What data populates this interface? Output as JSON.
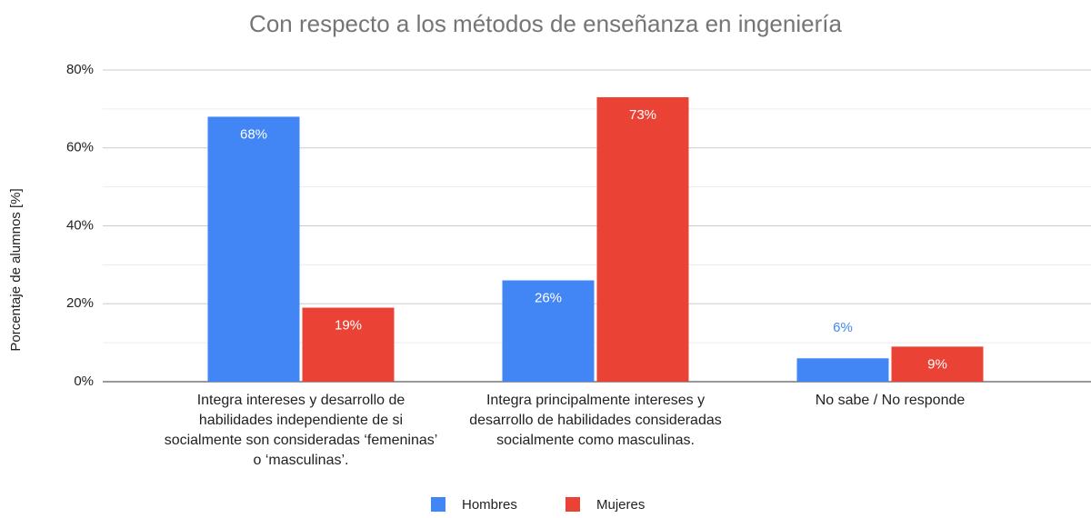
{
  "chart_data": {
    "type": "bar",
    "title": "Con respecto a los métodos de enseñanza en ingeniería",
    "y_label": "Porcentaje de alumnos [%]",
    "categories": [
      "Integra intereses y desarrollo de habilidades independiente de si socialmente son consideradas ‘femeninas’ o ‘masculinas’.",
      "Integra principalmente intereses y desarrollo de habilidades consideradas socialmente como masculinas.",
      "No sabe / No responde"
    ],
    "series": [
      {
        "name": "Hombres",
        "color": "#4285f4",
        "values": [
          68,
          26,
          6
        ],
        "value_labels": [
          "68%",
          "26%",
          "6%"
        ]
      },
      {
        "name": "Mujeres",
        "color": "#ea4335",
        "values": [
          19,
          73,
          9
        ],
        "value_labels": [
          "19%",
          "73%",
          "9%"
        ]
      }
    ],
    "ylim": [
      0,
      80
    ],
    "yticks": [
      {
        "value": 0,
        "label": "0%"
      },
      {
        "value": 20,
        "label": "20%"
      },
      {
        "value": 40,
        "label": "40%"
      },
      {
        "value": 60,
        "label": "60%"
      },
      {
        "value": 80,
        "label": "80%"
      }
    ],
    "minor_yticks": [
      10,
      30,
      50,
      70
    ],
    "grid": true,
    "legend": "bottom"
  }
}
